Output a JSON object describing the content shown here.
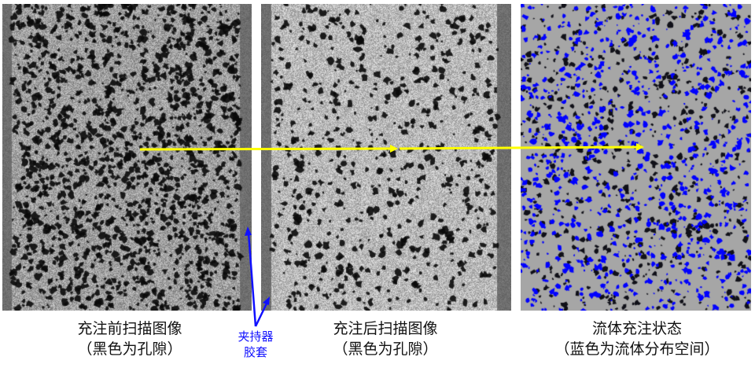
{
  "panels": [
    {
      "caption_line1": "充注前扫描图像",
      "caption_line2": "（黑色为孔隙）"
    },
    {
      "caption_line1": "充注后扫描图像",
      "caption_line2": "（黑色为孔隙）"
    },
    {
      "caption_line1": "流体充注状态",
      "caption_line2": "（蓝色为流体分布空间）"
    }
  ],
  "annotation": {
    "line1": "夹持器",
    "line2": "胶套"
  },
  "colors": {
    "arrow": "#ffff00",
    "fluid": "#0000ff",
    "annotation": "#1010ff",
    "background_state": "#a6a6a6"
  }
}
